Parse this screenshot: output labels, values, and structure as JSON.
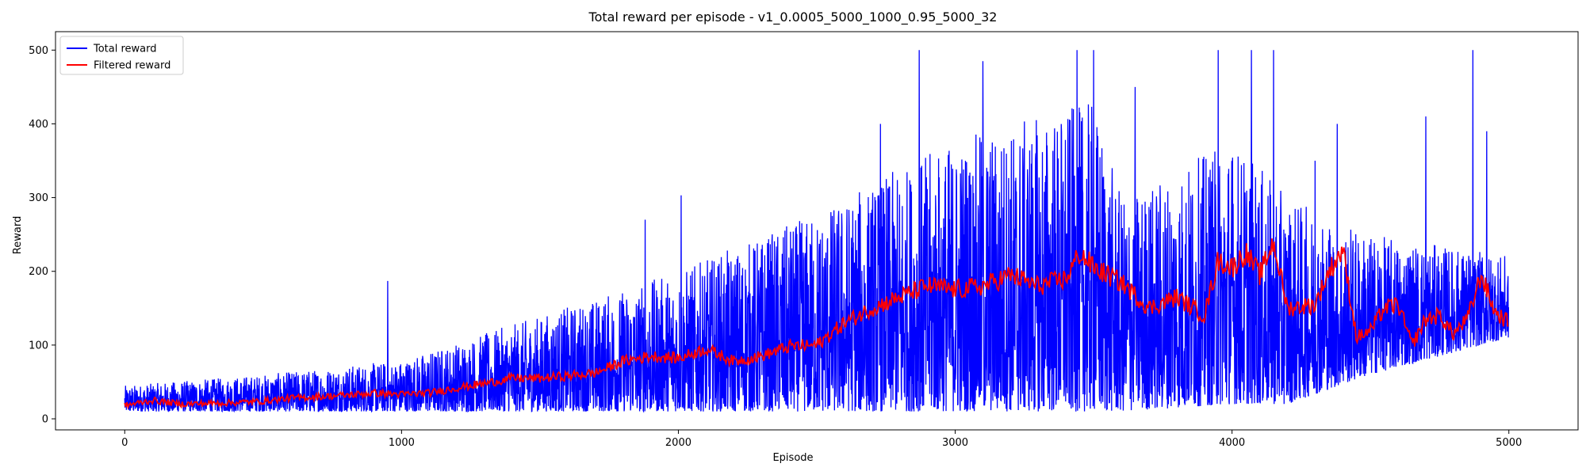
{
  "chart_data": {
    "type": "line",
    "title": "Total reward per episode - v1_0.0005_5000_1000_0.95_5000_32",
    "xlabel": "Episode",
    "ylabel": "Reward",
    "xlim": [
      -250,
      5250
    ],
    "ylim": [
      -15,
      525
    ],
    "x_ticks": [
      0,
      1000,
      2000,
      3000,
      4000,
      5000
    ],
    "y_ticks": [
      0,
      100,
      200,
      300,
      400,
      500
    ],
    "legend": {
      "placement": "top-left"
    },
    "grid": false,
    "series": [
      {
        "name": "Total reward",
        "color": "#0000ff",
        "episodes": 5000,
        "profile": [
          [
            0,
            10,
            45
          ],
          [
            500,
            10,
            60
          ],
          [
            1000,
            10,
            80
          ],
          [
            1500,
            10,
            140
          ],
          [
            2000,
            10,
            200
          ],
          [
            2500,
            10,
            280
          ],
          [
            3000,
            10,
            380
          ],
          [
            3500,
            10,
            430
          ],
          [
            3600,
            10,
            300
          ],
          [
            4000,
            20,
            380
          ],
          [
            4200,
            20,
            300
          ],
          [
            4500,
            60,
            250
          ],
          [
            5000,
            110,
            220
          ]
        ],
        "peaks": [
          [
            950,
            187
          ],
          [
            1880,
            270
          ],
          [
            2010,
            303
          ],
          [
            2730,
            400
          ],
          [
            2870,
            500
          ],
          [
            3100,
            485
          ],
          [
            3440,
            500
          ],
          [
            3500,
            500
          ],
          [
            3650,
            450
          ],
          [
            3950,
            500
          ],
          [
            4070,
            500
          ],
          [
            4150,
            500
          ],
          [
            4300,
            350
          ],
          [
            4380,
            400
          ],
          [
            4700,
            410
          ],
          [
            4870,
            500
          ],
          [
            4920,
            390
          ]
        ]
      },
      {
        "name": "Filtered reward",
        "color": "#ff0000",
        "points": [
          [
            0,
            18
          ],
          [
            100,
            25
          ],
          [
            200,
            20
          ],
          [
            300,
            21
          ],
          [
            400,
            22
          ],
          [
            500,
            24
          ],
          [
            600,
            28
          ],
          [
            700,
            30
          ],
          [
            800,
            32
          ],
          [
            900,
            35
          ],
          [
            1000,
            33
          ],
          [
            1100,
            35
          ],
          [
            1200,
            42
          ],
          [
            1300,
            48
          ],
          [
            1400,
            55
          ],
          [
            1500,
            55
          ],
          [
            1600,
            58
          ],
          [
            1700,
            62
          ],
          [
            1800,
            78
          ],
          [
            1900,
            85
          ],
          [
            2000,
            82
          ],
          [
            2100,
            95
          ],
          [
            2200,
            78
          ],
          [
            2300,
            85
          ],
          [
            2400,
            98
          ],
          [
            2500,
            100
          ],
          [
            2600,
            130
          ],
          [
            2700,
            150
          ],
          [
            2800,
            165
          ],
          [
            2900,
            180
          ],
          [
            3000,
            175
          ],
          [
            3100,
            180
          ],
          [
            3200,
            195
          ],
          [
            3300,
            180
          ],
          [
            3400,
            190
          ],
          [
            3450,
            225
          ],
          [
            3500,
            205
          ],
          [
            3600,
            185
          ],
          [
            3700,
            150
          ],
          [
            3800,
            165
          ],
          [
            3900,
            140
          ],
          [
            3950,
            215
          ],
          [
            4000,
            205
          ],
          [
            4050,
            225
          ],
          [
            4100,
            195
          ],
          [
            4150,
            240
          ],
          [
            4200,
            150
          ],
          [
            4300,
            155
          ],
          [
            4350,
            200
          ],
          [
            4400,
            230
          ],
          [
            4450,
            110
          ],
          [
            4500,
            120
          ],
          [
            4550,
            150
          ],
          [
            4600,
            155
          ],
          [
            4650,
            100
          ],
          [
            4700,
            135
          ],
          [
            4750,
            140
          ],
          [
            4800,
            115
          ],
          [
            4850,
            135
          ],
          [
            4900,
            195
          ],
          [
            4950,
            145
          ],
          [
            5000,
            130
          ]
        ]
      }
    ]
  }
}
